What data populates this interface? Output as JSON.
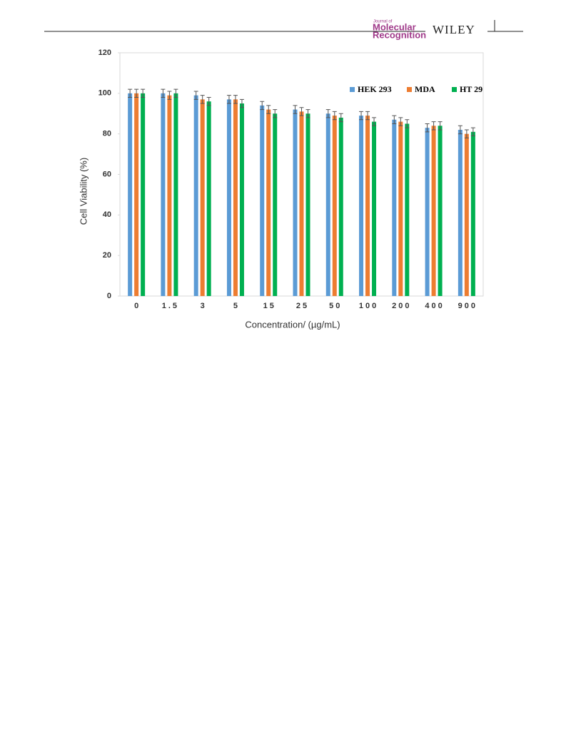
{
  "header": {
    "journal_prefix": "Journal of",
    "journal_line1": "Molecular",
    "journal_line2": "Recognition",
    "publisher": "WILEY"
  },
  "chart_data": {
    "type": "bar",
    "y_label": "Cell Viability (%)",
    "x_label": "Concentration/ (µg/mL)",
    "categories": [
      "0",
      "1.5",
      "3",
      "5",
      "15",
      "25",
      "50",
      "100",
      "200",
      "400",
      "900"
    ],
    "series": [
      {
        "name": "HEK 293",
        "color": "#5b9bd5",
        "values": [
          100,
          100,
          99,
          97,
          94,
          92,
          90,
          89,
          87,
          83,
          82
        ],
        "errors": [
          2,
          2,
          2,
          2,
          2,
          2,
          2,
          2,
          2,
          2,
          2
        ]
      },
      {
        "name": "MDA",
        "color": "#ed7d31",
        "values": [
          100,
          99,
          97,
          97,
          92,
          91,
          89,
          89,
          86,
          84,
          80
        ],
        "errors": [
          2,
          2,
          2,
          2,
          2,
          2,
          2,
          2,
          2,
          2,
          2
        ]
      },
      {
        "name": "HT 29",
        "color": "#00b050",
        "values": [
          100,
          100,
          96,
          95,
          90,
          90,
          88,
          86,
          85,
          84,
          81
        ],
        "errors": [
          2,
          2,
          2,
          2,
          2,
          2,
          2,
          2,
          2,
          2,
          2
        ]
      }
    ],
    "ylim": [
      0,
      120
    ],
    "yticks": [
      0,
      20,
      40,
      60,
      80,
      100,
      120
    ],
    "legend": "top-right"
  }
}
